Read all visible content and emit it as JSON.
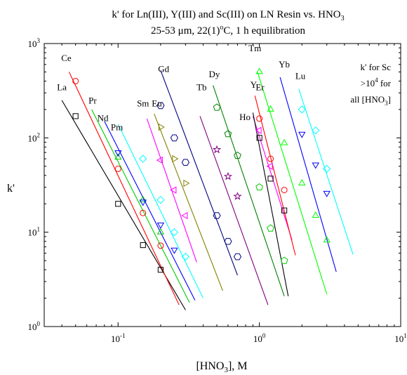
{
  "chart_data": {
    "type": "scatter",
    "title": {
      "line1_main": "k' for Ln(III), Y(III) and Sc(III) on LN Resin vs. HNO",
      "line1_sub": "3",
      "line2_a": "25-53 μm, 22(1)",
      "line2_sup": "o",
      "line2_b": "C, 1 h equilibration"
    },
    "xlabel": {
      "main": "[HNO",
      "sub": "3",
      "tail": "], M"
    },
    "ylabel": "k'",
    "xscale": "log",
    "yscale": "log",
    "xlim": [
      0.03,
      10
    ],
    "ylim": [
      1,
      1000
    ],
    "xticks": [
      {
        "base": "10",
        "exp": "-1",
        "value": 0.1
      },
      {
        "base": "10",
        "exp": "0",
        "value": 1
      },
      {
        "base": "10",
        "exp": "1",
        "value": 10
      }
    ],
    "yticks": [
      {
        "base": "10",
        "exp": "0",
        "value": 1
      },
      {
        "base": "10",
        "exp": "1",
        "value": 10
      },
      {
        "base": "10",
        "exp": "2",
        "value": 100
      },
      {
        "base": "10",
        "exp": "3",
        "value": 1000
      }
    ],
    "annotation": {
      "line1": "k' for Sc",
      "line2_a": ">10",
      "line2_sup": "4",
      "line2_b": " for",
      "line3": "all [HNO",
      "line3_sub": "3",
      "line3_b": "]"
    },
    "series": [
      {
        "name": "La",
        "color": "#000000",
        "marker": "square",
        "points": [
          [
            0.05,
            170
          ],
          [
            0.1,
            20
          ],
          [
            0.15,
            7.3
          ],
          [
            0.2,
            4.0
          ]
        ],
        "fit": [
          [
            0.04,
            250
          ],
          [
            0.3,
            1.5
          ]
        ],
        "label_at": [
          0.04,
          320
        ]
      },
      {
        "name": "Ce",
        "color": "#ff0000",
        "marker": "circle",
        "points": [
          [
            0.05,
            400
          ],
          [
            0.1,
            47
          ],
          [
            0.15,
            16
          ],
          [
            0.2,
            7.2
          ]
        ],
        "fit": [
          [
            0.045,
            500
          ],
          [
            0.27,
            1.7
          ]
        ],
        "label_at": [
          0.043,
          650
        ]
      },
      {
        "name": "Pr",
        "color": "#00cc00",
        "marker": "triangle-up",
        "points": [
          [
            0.1,
            62
          ],
          [
            0.15,
            22
          ],
          [
            0.2,
            10
          ]
        ],
        "fit": [
          [
            0.065,
            200
          ],
          [
            0.32,
            1.8
          ]
        ],
        "label_at": [
          0.066,
          230
        ]
      },
      {
        "name": "Nd",
        "color": "#0000ff",
        "marker": "triangle-down",
        "points": [
          [
            0.1,
            70
          ],
          [
            0.15,
            21
          ],
          [
            0.2,
            12
          ],
          [
            0.25,
            6.5
          ]
        ],
        "fit": [
          [
            0.08,
            150
          ],
          [
            0.35,
            1.9
          ]
        ],
        "label_at": [
          0.078,
          150
        ]
      },
      {
        "name": "Pm",
        "color": "#00ffff",
        "marker": "diamond",
        "points": [
          [
            0.15,
            60
          ],
          [
            0.2,
            22
          ],
          [
            0.25,
            10
          ],
          [
            0.3,
            5.5
          ]
        ],
        "fit": [
          [
            0.1,
            140
          ],
          [
            0.4,
            2.0
          ]
        ],
        "label_at": [
          0.098,
          120
        ]
      },
      {
        "name": "Sm",
        "color": "#ff00ff",
        "marker": "triangle-left",
        "points": [
          [
            0.2,
            58
          ],
          [
            0.25,
            28
          ],
          [
            0.3,
            15
          ]
        ],
        "fit": [
          [
            0.16,
            160
          ],
          [
            0.36,
            4.8
          ]
        ],
        "label_at": [
          0.15,
          215
        ]
      },
      {
        "name": "Eu",
        "color": "#808000",
        "marker": "triangle-right",
        "points": [
          [
            0.2,
            130
          ],
          [
            0.25,
            60
          ],
          [
            0.3,
            33
          ]
        ],
        "fit": [
          [
            0.18,
            180
          ],
          [
            0.55,
            2.4
          ]
        ],
        "label_at": [
          0.188,
          215
        ]
      },
      {
        "name": "Gd",
        "color": "#000080",
        "marker": "hexagon",
        "points": [
          [
            0.2,
            220
          ],
          [
            0.25,
            100
          ],
          [
            0.3,
            55
          ],
          [
            0.5,
            15
          ],
          [
            0.6,
            8.0
          ],
          [
            0.7,
            5.5
          ]
        ],
        "fit": [
          [
            0.2,
            520
          ],
          [
            0.7,
            3.5
          ]
        ],
        "label_at": [
          0.21,
          500
        ]
      },
      {
        "name": "Tb",
        "color": "#800080",
        "marker": "star",
        "points": [
          [
            0.5,
            75
          ],
          [
            0.6,
            39
          ],
          [
            0.7,
            24
          ]
        ],
        "fit": [
          [
            0.38,
            170
          ],
          [
            1.15,
            1.7
          ]
        ],
        "label_at": [
          0.39,
          320
        ]
      },
      {
        "name": "Dy",
        "color": "#008000",
        "marker": "pentagon",
        "points": [
          [
            0.5,
            210
          ],
          [
            0.6,
            110
          ],
          [
            0.7,
            65
          ]
        ],
        "fit": [
          [
            0.47,
            360
          ],
          [
            1.5,
            2.1
          ]
        ],
        "label_at": [
          0.48,
          440
        ]
      },
      {
        "name": "Y",
        "color": "#ff00ff",
        "marker": "triangle-left",
        "points": [
          [
            1.0,
            120
          ],
          [
            1.2,
            50
          ]
        ],
        "fit": [
          [
            0.9,
            170
          ],
          [
            1.7,
            8.3
          ]
        ],
        "label_at": [
          0.91,
          340
        ]
      },
      {
        "name": "Ho",
        "color": "#000000",
        "marker": "square",
        "points": [
          [
            1.0,
            100
          ],
          [
            1.2,
            37
          ],
          [
            1.5,
            17
          ]
        ],
        "fit": [
          [
            0.9,
            185
          ],
          [
            1.6,
            2.1
          ]
        ],
        "label_at": [
          0.79,
          155
        ]
      },
      {
        "name": "Er",
        "color": "#ff0000",
        "marker": "circle",
        "points": [
          [
            1.0,
            160
          ],
          [
            1.2,
            60
          ],
          [
            1.5,
            28
          ]
        ],
        "fit": [
          [
            0.93,
            280
          ],
          [
            1.8,
            5.7
          ]
        ],
        "label_at": [
          1.01,
          320
        ]
      },
      {
        "name": "Tm",
        "color": "#00ff00",
        "marker": "triangle-up",
        "points": [
          [
            1.0,
            500
          ],
          [
            1.2,
            200
          ],
          [
            1.5,
            88
          ],
          [
            2.0,
            33
          ],
          [
            2.5,
            15
          ],
          [
            3.0,
            8.2
          ]
        ],
        "fit": [
          [
            0.97,
            500
          ],
          [
            3.0,
            2.2
          ]
        ],
        "label_at": [
          0.93,
          830
        ]
      },
      {
        "name": "Yb",
        "color": "#0000ff",
        "marker": "triangle-down",
        "points": [
          [
            2.0,
            110
          ],
          [
            2.5,
            52
          ],
          [
            3.0,
            26
          ]
        ],
        "fit": [
          [
            1.4,
            440
          ],
          [
            3.5,
            3.8
          ]
        ],
        "label_at": [
          1.5,
          560
        ]
      },
      {
        "name": "Lu",
        "color": "#00ffff",
        "marker": "diamond",
        "points": [
          [
            2.0,
            200
          ],
          [
            2.5,
            120
          ],
          [
            3.0,
            47
          ]
        ],
        "fit": [
          [
            1.9,
            330
          ],
          [
            4.6,
            5.8
          ]
        ],
        "label_at": [
          1.95,
          420
        ]
      },
      {
        "name": "",
        "color": "#00cc00",
        "marker": "pentagon",
        "points": [
          [
            1.0,
            30
          ],
          [
            1.2,
            11
          ],
          [
            1.5,
            5.0
          ]
        ],
        "fit": [],
        "label_at": null
      }
    ]
  }
}
